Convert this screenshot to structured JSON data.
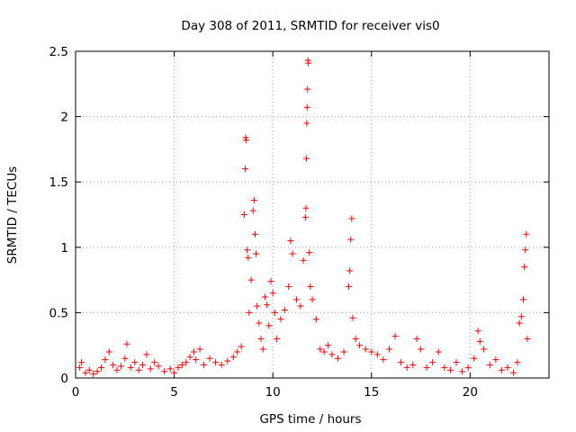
{
  "chart_data": {
    "type": "scatter",
    "title": "Day 308 of 2011, SRMTID for receiver vis0",
    "xlabel": "GPS time / hours",
    "ylabel": "SRMTID / TECUs",
    "xlim": [
      0,
      24
    ],
    "ylim": [
      0,
      2.5
    ],
    "x_ticks": [
      0,
      5,
      10,
      15,
      20
    ],
    "y_ticks": [
      0,
      0.5,
      1,
      1.5,
      2,
      2.5
    ],
    "x_tick_labels": [
      "0",
      "5",
      "10",
      "15",
      "20"
    ],
    "y_tick_labels": [
      "0",
      "0.5",
      "1",
      "1.5",
      "2",
      "2.5"
    ],
    "grid": true,
    "marker": "plus",
    "series": [
      {
        "name": "vis0",
        "color": "#ff0000",
        "points": [
          [
            0.2,
            0.08
          ],
          [
            0.3,
            0.12
          ],
          [
            0.5,
            0.04
          ],
          [
            0.7,
            0.06
          ],
          [
            0.9,
            0.03
          ],
          [
            1.1,
            0.05
          ],
          [
            1.3,
            0.08
          ],
          [
            1.5,
            0.14
          ],
          [
            1.7,
            0.2
          ],
          [
            1.9,
            0.1
          ],
          [
            2.1,
            0.06
          ],
          [
            2.3,
            0.09
          ],
          [
            2.5,
            0.15
          ],
          [
            2.6,
            0.26
          ],
          [
            2.8,
            0.08
          ],
          [
            3.0,
            0.12
          ],
          [
            3.2,
            0.06
          ],
          [
            3.4,
            0.1
          ],
          [
            3.6,
            0.18
          ],
          [
            3.8,
            0.07
          ],
          [
            4.0,
            0.12
          ],
          [
            4.2,
            0.09
          ],
          [
            4.5,
            0.05
          ],
          [
            4.8,
            0.07
          ],
          [
            5.0,
            0.04
          ],
          [
            5.2,
            0.08
          ],
          [
            5.4,
            0.1
          ],
          [
            5.6,
            0.12
          ],
          [
            5.8,
            0.16
          ],
          [
            6.0,
            0.2
          ],
          [
            6.1,
            0.14
          ],
          [
            6.3,
            0.22
          ],
          [
            6.5,
            0.1
          ],
          [
            6.8,
            0.15
          ],
          [
            7.1,
            0.12
          ],
          [
            7.4,
            0.1
          ],
          [
            7.7,
            0.13
          ],
          [
            8.0,
            0.16
          ],
          [
            8.2,
            0.2
          ],
          [
            8.4,
            0.24
          ],
          [
            8.55,
            1.25
          ],
          [
            8.6,
            1.6
          ],
          [
            8.62,
            1.84
          ],
          [
            8.65,
            1.82
          ],
          [
            8.7,
            0.98
          ],
          [
            8.75,
            0.92
          ],
          [
            8.8,
            0.5
          ],
          [
            8.9,
            0.75
          ],
          [
            9.0,
            1.28
          ],
          [
            9.05,
            1.36
          ],
          [
            9.1,
            1.1
          ],
          [
            9.15,
            0.95
          ],
          [
            9.2,
            0.55
          ],
          [
            9.3,
            0.42
          ],
          [
            9.4,
            0.3
          ],
          [
            9.5,
            0.22
          ],
          [
            9.6,
            0.62
          ],
          [
            9.7,
            0.56
          ],
          [
            9.8,
            0.4
          ],
          [
            9.9,
            0.74
          ],
          [
            10.0,
            0.65
          ],
          [
            10.1,
            0.5
          ],
          [
            10.2,
            0.3
          ],
          [
            10.4,
            0.45
          ],
          [
            10.6,
            0.52
          ],
          [
            10.8,
            0.7
          ],
          [
            10.9,
            1.05
          ],
          [
            11.0,
            0.95
          ],
          [
            11.2,
            0.6
          ],
          [
            11.4,
            0.55
          ],
          [
            11.55,
            0.9
          ],
          [
            11.65,
            1.23
          ],
          [
            11.68,
            1.3
          ],
          [
            11.7,
            1.68
          ],
          [
            11.72,
            1.95
          ],
          [
            11.74,
            2.07
          ],
          [
            11.76,
            2.21
          ],
          [
            11.78,
            2.43
          ],
          [
            11.8,
            2.41
          ],
          [
            11.85,
            0.96
          ],
          [
            11.9,
            0.7
          ],
          [
            12.0,
            0.6
          ],
          [
            12.2,
            0.45
          ],
          [
            12.4,
            0.22
          ],
          [
            12.6,
            0.2
          ],
          [
            12.8,
            0.25
          ],
          [
            13.0,
            0.18
          ],
          [
            13.3,
            0.15
          ],
          [
            13.6,
            0.2
          ],
          [
            13.85,
            0.7
          ],
          [
            13.9,
            0.82
          ],
          [
            13.95,
            1.06
          ],
          [
            14.0,
            1.22
          ],
          [
            14.05,
            0.46
          ],
          [
            14.2,
            0.3
          ],
          [
            14.4,
            0.25
          ],
          [
            14.7,
            0.22
          ],
          [
            15.0,
            0.2
          ],
          [
            15.3,
            0.18
          ],
          [
            15.6,
            0.14
          ],
          [
            15.9,
            0.22
          ],
          [
            16.2,
            0.32
          ],
          [
            16.5,
            0.12
          ],
          [
            16.8,
            0.08
          ],
          [
            17.1,
            0.1
          ],
          [
            17.3,
            0.3
          ],
          [
            17.5,
            0.22
          ],
          [
            17.8,
            0.08
          ],
          [
            18.1,
            0.12
          ],
          [
            18.4,
            0.2
          ],
          [
            18.7,
            0.08
          ],
          [
            19.0,
            0.06
          ],
          [
            19.3,
            0.12
          ],
          [
            19.6,
            0.05
          ],
          [
            19.9,
            0.08
          ],
          [
            20.2,
            0.15
          ],
          [
            20.4,
            0.36
          ],
          [
            20.5,
            0.28
          ],
          [
            20.7,
            0.22
          ],
          [
            21.0,
            0.1
          ],
          [
            21.3,
            0.14
          ],
          [
            21.6,
            0.06
          ],
          [
            21.9,
            0.08
          ],
          [
            22.2,
            0.04
          ],
          [
            22.4,
            0.12
          ],
          [
            22.5,
            0.42
          ],
          [
            22.6,
            0.47
          ],
          [
            22.7,
            0.6
          ],
          [
            22.75,
            0.85
          ],
          [
            22.8,
            0.98
          ],
          [
            22.85,
            1.1
          ],
          [
            22.9,
            0.3
          ]
        ]
      }
    ]
  }
}
